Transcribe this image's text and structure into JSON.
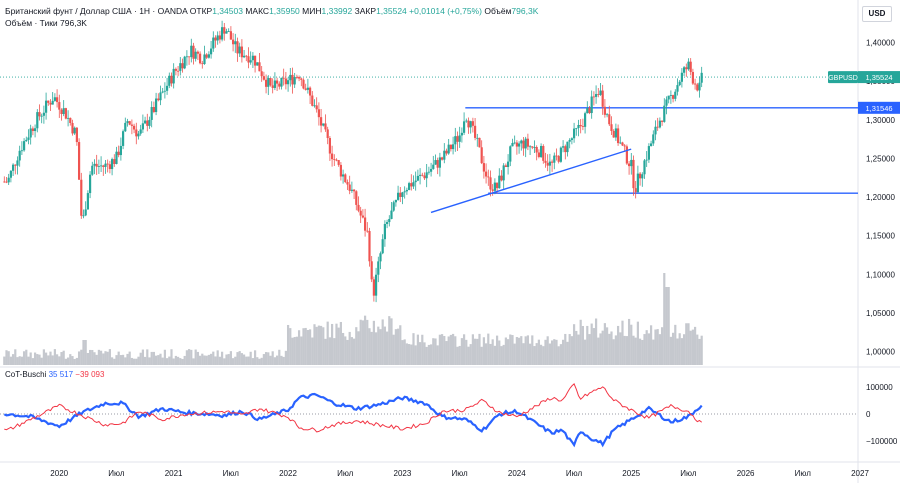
{
  "header": {
    "title": "Британский фунт / Доллар США · 1Н · OANDA",
    "open_label": "ОТКР",
    "open": "1,34503",
    "high_label": "МАКС",
    "high": "1,35950",
    "low_label": "МИН",
    "low": "1,33992",
    "close_label": "ЗАКР",
    "close": "1,35524",
    "change": "+0,01014 (+0,75%)",
    "volume_label": "Объём",
    "volume": "796,3K",
    "volume_line": "Объём · Тики  796,3K"
  },
  "currency_button": "USD",
  "indicator": {
    "name": "CoT-Buschi",
    "val1": "35 517",
    "val2": "−39 093"
  },
  "colors": {
    "up": "#26a69a",
    "down": "#ef5350",
    "line": "#2962ff",
    "cot_blue": "#2962ff",
    "cot_red": "#f23645",
    "symbol_label": "#26a69a"
  },
  "chart_data": {
    "type": "candlestick",
    "symbol": "GBPUSD",
    "last_price": 1.35524,
    "last_price_label": "1,35524",
    "level_label": "1,31546",
    "levels": [
      1.31546,
      1.205
    ],
    "trendline": {
      "from": [
        "2023-04",
        1.18
      ],
      "to": [
        "2025-01",
        1.262
      ]
    },
    "y_axis": {
      "range": [
        0.98,
        1.455
      ],
      "ticks": [
        "1,00000",
        "1,05000",
        "1,10000",
        "1,15000",
        "1,20000",
        "1,25000",
        "1,30000",
        "1,35000",
        "1,40000"
      ]
    },
    "x_axis": {
      "range": [
        "2019-07",
        "2027-01"
      ],
      "ticks": [
        "2020",
        "Июл",
        "2021",
        "Июл",
        "2022",
        "Июл",
        "2023",
        "Июл",
        "2024",
        "Июл",
        "2025",
        "Июл",
        "2026",
        "Июл",
        "2027"
      ]
    },
    "price_path": [
      [
        2019.55,
        1.22
      ],
      [
        2019.65,
        1.26
      ],
      [
        2019.8,
        1.3
      ],
      [
        2019.95,
        1.33
      ],
      [
        2020.05,
        1.31
      ],
      [
        2020.15,
        1.28
      ],
      [
        2020.2,
        1.16
      ],
      [
        2020.28,
        1.24
      ],
      [
        2020.4,
        1.24
      ],
      [
        2020.5,
        1.25
      ],
      [
        2020.6,
        1.3
      ],
      [
        2020.7,
        1.28
      ],
      [
        2020.85,
        1.32
      ],
      [
        2021.0,
        1.36
      ],
      [
        2021.15,
        1.39
      ],
      [
        2021.25,
        1.38
      ],
      [
        2021.4,
        1.41
      ],
      [
        2021.45,
        1.42
      ],
      [
        2021.55,
        1.39
      ],
      [
        2021.7,
        1.38
      ],
      [
        2021.85,
        1.34
      ],
      [
        2022.0,
        1.35
      ],
      [
        2022.1,
        1.36
      ],
      [
        2022.25,
        1.31
      ],
      [
        2022.4,
        1.25
      ],
      [
        2022.55,
        1.21
      ],
      [
        2022.7,
        1.15
      ],
      [
        2022.74,
        1.07
      ],
      [
        2022.85,
        1.16
      ],
      [
        2023.0,
        1.21
      ],
      [
        2023.2,
        1.23
      ],
      [
        2023.35,
        1.25
      ],
      [
        2023.5,
        1.28
      ],
      [
        2023.55,
        1.31
      ],
      [
        2023.65,
        1.27
      ],
      [
        2023.75,
        1.22
      ],
      [
        2023.82,
        1.21
      ],
      [
        2023.95,
        1.26
      ],
      [
        2024.05,
        1.27
      ],
      [
        2024.2,
        1.26
      ],
      [
        2024.3,
        1.24
      ],
      [
        2024.45,
        1.27
      ],
      [
        2024.55,
        1.29
      ],
      [
        2024.65,
        1.32
      ],
      [
        2024.72,
        1.34
      ],
      [
        2024.8,
        1.3
      ],
      [
        2024.9,
        1.27
      ],
      [
        2025.0,
        1.24
      ],
      [
        2025.03,
        1.21
      ],
      [
        2025.15,
        1.26
      ],
      [
        2025.25,
        1.3
      ],
      [
        2025.35,
        1.33
      ],
      [
        2025.45,
        1.36
      ],
      [
        2025.5,
        1.37
      ],
      [
        2025.55,
        1.35
      ],
      [
        2025.6,
        1.34
      ],
      [
        2025.62,
        1.355
      ]
    ],
    "volume_pattern": "low until 2022, elevated 2022–2025 with spike near 2025.3",
    "cot_series": [
      {
        "name": "blue",
        "range": [
          -100000,
          100000
        ],
        "values_path": [
          [
            2019.55,
            0
          ],
          [
            2019.75,
            -10000
          ],
          [
            2020.0,
            -45000
          ],
          [
            2020.2,
            5000
          ],
          [
            2020.4,
            40000
          ],
          [
            2020.55,
            40000
          ],
          [
            2020.7,
            -10000
          ],
          [
            2020.9,
            20000
          ],
          [
            2021.1,
            5000
          ],
          [
            2021.3,
            0
          ],
          [
            2021.45,
            -5000
          ],
          [
            2021.6,
            10000
          ],
          [
            2021.75,
            -20000
          ],
          [
            2022.0,
            15000
          ],
          [
            2022.1,
            60000
          ],
          [
            2022.25,
            70000
          ],
          [
            2022.4,
            40000
          ],
          [
            2022.6,
            20000
          ],
          [
            2022.8,
            35000
          ],
          [
            2023.0,
            60000
          ],
          [
            2023.2,
            40000
          ],
          [
            2023.35,
            -10000
          ],
          [
            2023.55,
            -20000
          ],
          [
            2023.7,
            -60000
          ],
          [
            2023.85,
            0
          ],
          [
            2024.0,
            10000
          ],
          [
            2024.15,
            -30000
          ],
          [
            2024.3,
            -70000
          ],
          [
            2024.4,
            -60000
          ],
          [
            2024.5,
            -120000
          ],
          [
            2024.55,
            -60000
          ],
          [
            2024.65,
            -90000
          ],
          [
            2024.75,
            -110000
          ],
          [
            2024.85,
            -60000
          ],
          [
            2025.0,
            -20000
          ],
          [
            2025.15,
            20000
          ],
          [
            2025.35,
            -30000
          ],
          [
            2025.5,
            -10000
          ],
          [
            2025.62,
            35517
          ]
        ]
      },
      {
        "name": "red",
        "range": [
          -100000,
          100000
        ],
        "values_path": [
          [
            2019.55,
            -60000
          ],
          [
            2019.75,
            -20000
          ],
          [
            2020.0,
            30000
          ],
          [
            2020.2,
            -5000
          ],
          [
            2020.4,
            -40000
          ],
          [
            2020.55,
            -35000
          ],
          [
            2020.7,
            10000
          ],
          [
            2020.9,
            -20000
          ],
          [
            2021.1,
            0
          ],
          [
            2021.3,
            5000
          ],
          [
            2021.45,
            10000
          ],
          [
            2021.6,
            -5000
          ],
          [
            2021.75,
            20000
          ],
          [
            2022.0,
            -10000
          ],
          [
            2022.1,
            -50000
          ],
          [
            2022.25,
            -60000
          ],
          [
            2022.4,
            -40000
          ],
          [
            2022.6,
            -25000
          ],
          [
            2022.8,
            -40000
          ],
          [
            2023.0,
            -55000
          ],
          [
            2023.2,
            -35000
          ],
          [
            2023.35,
            10000
          ],
          [
            2023.55,
            15000
          ],
          [
            2023.7,
            50000
          ],
          [
            2023.85,
            5000
          ],
          [
            2024.0,
            -10000
          ],
          [
            2024.15,
            25000
          ],
          [
            2024.3,
            60000
          ],
          [
            2024.4,
            50000
          ],
          [
            2024.5,
            110000
          ],
          [
            2024.55,
            55000
          ],
          [
            2024.65,
            80000
          ],
          [
            2024.75,
            100000
          ],
          [
            2024.85,
            50000
          ],
          [
            2025.0,
            15000
          ],
          [
            2025.15,
            -15000
          ],
          [
            2025.35,
            30000
          ],
          [
            2025.5,
            10000
          ],
          [
            2025.62,
            -39093
          ]
        ]
      }
    ],
    "cot_axis_ticks": [
      "100000",
      "0",
      "−100000"
    ]
  }
}
